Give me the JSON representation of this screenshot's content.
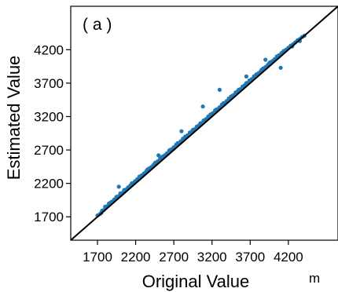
{
  "chart_data": {
    "type": "scatter",
    "panel_label": "( a )",
    "xlabel": "Original Value",
    "ylabel": "Estimated Value",
    "unit": "m",
    "xlim": [
      1350,
      4850
    ],
    "ylim": [
      1350,
      4850
    ],
    "xticks": [
      1700,
      2200,
      2700,
      3200,
      3700,
      4200
    ],
    "yticks": [
      1700,
      2200,
      2700,
      3200,
      3700,
      4200
    ],
    "grid": false,
    "reference_line": "y = x",
    "colors": {
      "points": "#1f77b4",
      "reference_line": "#000000"
    },
    "series": [
      {
        "x": [
          1700,
          1730,
          1760,
          1780,
          1800,
          1830,
          1850,
          1880,
          1900,
          1920,
          1950,
          1980,
          2000,
          2030,
          2060,
          2080,
          2100,
          2130,
          2160,
          2190,
          2220,
          2250,
          2280,
          2310,
          2340,
          2370,
          2400,
          2430,
          2460,
          2490,
          2520,
          2550,
          2580,
          2610,
          2640,
          2670,
          2700,
          2730,
          2760,
          2790,
          2820,
          2850,
          2880,
          2910,
          2940,
          2970,
          3000,
          3030,
          3060,
          3090,
          3120,
          3150,
          3180,
          3210,
          3240,
          3270,
          3300,
          3330,
          3360,
          3390,
          3420,
          3450,
          3480,
          3510,
          3540,
          3570,
          3600,
          3630,
          3660,
          3690,
          3720,
          3750,
          3780,
          3810,
          3840,
          3870,
          3900,
          3930,
          3960,
          3990,
          4020,
          4050,
          4080,
          4110,
          4140,
          4170,
          4200,
          4230,
          4260,
          4290,
          4320,
          4350,
          4380,
          4410,
          1750,
          1820,
          1870,
          1950,
          2050,
          2150,
          2250,
          2350,
          2450,
          2550,
          2650,
          2750,
          2850,
          2950,
          3050,
          3150,
          3250,
          3350,
          3450,
          3550,
          3650,
          3750,
          3850,
          3950,
          4050,
          4150,
          4250,
          4350,
          1980,
          3080,
          3300,
          3650,
          3900,
          4100,
          2500,
          2800
        ],
        "y": [
          1720,
          1740,
          1790,
          1800,
          1850,
          1860,
          1900,
          1920,
          1930,
          1960,
          1990,
          2010,
          2050,
          2060,
          2100,
          2110,
          2140,
          2170,
          2200,
          2230,
          2260,
          2300,
          2320,
          2350,
          2380,
          2420,
          2440,
          2470,
          2510,
          2530,
          2570,
          2590,
          2620,
          2650,
          2690,
          2710,
          2740,
          2780,
          2800,
          2830,
          2870,
          2890,
          2920,
          2960,
          2980,
          3010,
          3050,
          3070,
          3100,
          3140,
          3160,
          3190,
          3230,
          3250,
          3290,
          3310,
          3340,
          3380,
          3400,
          3430,
          3470,
          3490,
          3520,
          3560,
          3580,
          3610,
          3650,
          3670,
          3700,
          3740,
          3760,
          3790,
          3830,
          3850,
          3880,
          3920,
          3940,
          3970,
          4010,
          4030,
          4060,
          4090,
          4120,
          4150,
          4180,
          4200,
          4230,
          4260,
          4280,
          4310,
          4340,
          4360,
          4390,
          4410,
          1760,
          1850,
          1910,
          2000,
          2100,
          2200,
          2300,
          2400,
          2500,
          2600,
          2700,
          2800,
          2900,
          3000,
          3100,
          3200,
          3300,
          3400,
          3500,
          3600,
          3700,
          3800,
          3900,
          4000,
          4100,
          4180,
          4250,
          4330,
          2150,
          3350,
          3600,
          3800,
          4050,
          3930,
          2620,
          2980
        ]
      }
    ]
  }
}
